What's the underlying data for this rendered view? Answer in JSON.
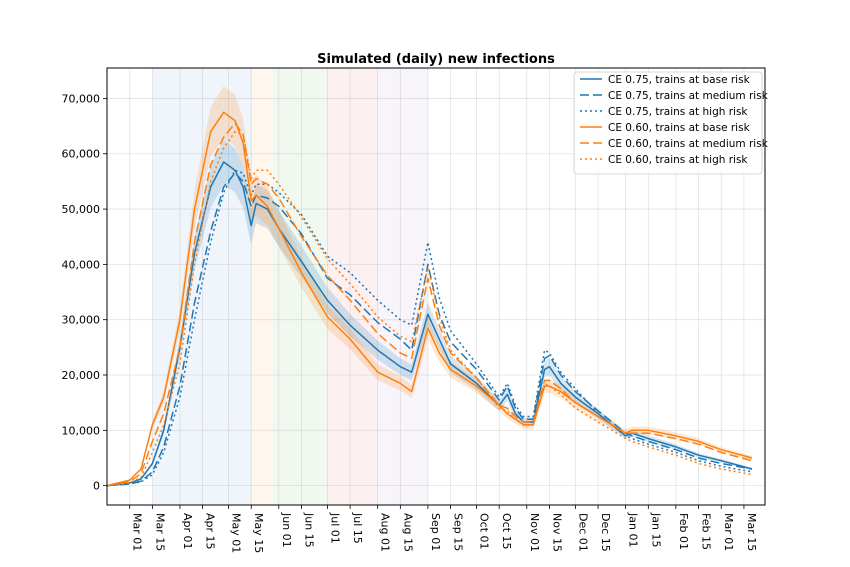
{
  "chart_data": {
    "type": "line",
    "title": "Simulated (daily) new infections",
    "xlabel": "",
    "ylabel": "",
    "ylim": [
      -3500,
      75500
    ],
    "xlim": [
      "2020-02-16",
      "2021-03-28"
    ],
    "grid": true,
    "legend_position": "top-right",
    "x_tick_labels": [
      "Mar 01",
      "Mar 15",
      "Apr 01",
      "Apr 15",
      "May 01",
      "May 15",
      "Jun 01",
      "Jun 15",
      "Jul 01",
      "Jul 15",
      "Aug 01",
      "Aug 15",
      "Sep 01",
      "Sep 15",
      "Oct 01",
      "Oct 15",
      "Nov 01",
      "Nov 15",
      "Dec 01",
      "Dec 15",
      "Jan 01",
      "Jan 15",
      "Feb 01",
      "Feb 15",
      "Mar 01",
      "Mar 15"
    ],
    "x_tick_dates": [
      "2020-03-01",
      "2020-03-15",
      "2020-04-01",
      "2020-04-15",
      "2020-05-01",
      "2020-05-15",
      "2020-06-01",
      "2020-06-15",
      "2020-07-01",
      "2020-07-15",
      "2020-08-01",
      "2020-08-15",
      "2020-09-01",
      "2020-09-15",
      "2020-10-01",
      "2020-10-15",
      "2020-11-01",
      "2020-11-15",
      "2020-12-01",
      "2020-12-15",
      "2021-01-01",
      "2021-01-15",
      "2021-02-01",
      "2021-02-15",
      "2021-03-01",
      "2021-03-15"
    ],
    "y_ticks": [
      0,
      10000,
      20000,
      30000,
      40000,
      50000,
      60000,
      70000
    ],
    "y_tick_labels": [
      "0",
      "10,000",
      "20,000",
      "30,000",
      "40,000",
      "50,000",
      "60,000",
      "70,000"
    ],
    "shaded_periods": [
      {
        "start": "2020-03-15",
        "end": "2020-05-15",
        "color": "#1f77b4"
      },
      {
        "start": "2020-05-15",
        "end": "2020-05-28",
        "color": "#ff7f0e"
      },
      {
        "start": "2020-05-28",
        "end": "2020-07-01",
        "color": "#2ca02c"
      },
      {
        "start": "2020-07-01",
        "end": "2020-08-01",
        "color": "#d62728"
      },
      {
        "start": "2020-08-01",
        "end": "2020-09-01",
        "color": "#9467bd"
      }
    ],
    "colors": {
      "blue": "#1f77b4",
      "orange": "#ff7f0e"
    },
    "series": [
      {
        "name": "CE 0.75, trains at base risk",
        "color": "#1f77b4",
        "dash": "solid",
        "band": true,
        "x": [
          "2020-02-16",
          "2020-03-01",
          "2020-03-08",
          "2020-03-15",
          "2020-03-22",
          "2020-04-01",
          "2020-04-10",
          "2020-04-20",
          "2020-04-28",
          "2020-05-05",
          "2020-05-10",
          "2020-05-15",
          "2020-05-18",
          "2020-05-25",
          "2020-06-01",
          "2020-06-15",
          "2020-07-01",
          "2020-07-15",
          "2020-08-01",
          "2020-08-15",
          "2020-08-22",
          "2020-09-01",
          "2020-09-08",
          "2020-09-15",
          "2020-10-01",
          "2020-10-15",
          "2020-10-20",
          "2020-10-25",
          "2020-10-30",
          "2020-11-05",
          "2020-11-12",
          "2020-11-15",
          "2020-11-22",
          "2020-12-01",
          "2020-12-15",
          "2021-01-01",
          "2021-01-05",
          "2021-01-15",
          "2021-02-01",
          "2021-02-15",
          "2021-03-01",
          "2021-03-20"
        ],
        "values": [
          0,
          500,
          1200,
          4000,
          10000,
          25000,
          42000,
          54000,
          58500,
          57000,
          54000,
          47000,
          51000,
          50000,
          46500,
          40500,
          33500,
          29000,
          24500,
          21500,
          20500,
          31000,
          26500,
          22000,
          18500,
          14500,
          16500,
          13000,
          11500,
          11500,
          21000,
          21500,
          18500,
          16000,
          13000,
          9000,
          9500,
          8500,
          7000,
          5500,
          4500,
          3000
        ]
      },
      {
        "name": "CE 0.75, trains at medium risk",
        "color": "#1f77b4",
        "dash": "9,4",
        "band": false,
        "x": [
          "2020-02-16",
          "2020-03-01",
          "2020-03-08",
          "2020-03-15",
          "2020-03-22",
          "2020-04-01",
          "2020-04-10",
          "2020-04-20",
          "2020-04-28",
          "2020-05-05",
          "2020-05-10",
          "2020-05-15",
          "2020-05-18",
          "2020-05-25",
          "2020-06-01",
          "2020-06-15",
          "2020-07-01",
          "2020-07-15",
          "2020-08-01",
          "2020-08-15",
          "2020-08-22",
          "2020-09-01",
          "2020-09-08",
          "2020-09-15",
          "2020-10-01",
          "2020-10-15",
          "2020-10-20",
          "2020-10-25",
          "2020-10-30",
          "2020-11-05",
          "2020-11-12",
          "2020-11-15",
          "2020-11-22",
          "2020-12-01",
          "2020-12-15",
          "2021-01-01",
          "2021-01-05",
          "2021-01-15",
          "2021-02-01",
          "2021-02-15",
          "2021-03-01",
          "2021-03-20"
        ],
        "values": [
          0,
          300,
          800,
          2500,
          7000,
          18000,
          33000,
          46000,
          54000,
          56500,
          55000,
          50500,
          52500,
          52000,
          50500,
          45500,
          37500,
          34500,
          29500,
          26500,
          24500,
          40000,
          31000,
          26000,
          21000,
          15500,
          18000,
          14000,
          12000,
          12000,
          23000,
          23500,
          20000,
          17000,
          13500,
          9500,
          9000,
          8000,
          6500,
          5000,
          4000,
          3000
        ]
      },
      {
        "name": "CE 0.75, trains at high risk",
        "color": "#1f77b4",
        "dash": "2,3",
        "band": false,
        "x": [
          "2020-02-16",
          "2020-03-01",
          "2020-03-08",
          "2020-03-15",
          "2020-03-22",
          "2020-04-01",
          "2020-04-10",
          "2020-04-20",
          "2020-04-28",
          "2020-05-05",
          "2020-05-10",
          "2020-05-15",
          "2020-05-18",
          "2020-05-25",
          "2020-06-01",
          "2020-06-15",
          "2020-07-01",
          "2020-07-15",
          "2020-08-01",
          "2020-08-15",
          "2020-08-22",
          "2020-09-01",
          "2020-09-08",
          "2020-09-15",
          "2020-10-01",
          "2020-10-15",
          "2020-10-20",
          "2020-10-25",
          "2020-10-30",
          "2020-11-05",
          "2020-11-12",
          "2020-11-15",
          "2020-11-22",
          "2020-12-01",
          "2020-12-15",
          "2021-01-01",
          "2021-01-05",
          "2021-01-15",
          "2021-02-01",
          "2021-02-15",
          "2021-03-01",
          "2021-03-20"
        ],
        "values": [
          0,
          300,
          700,
          2000,
          6000,
          16000,
          30000,
          44000,
          53000,
          57000,
          56500,
          52500,
          54500,
          54500,
          53000,
          49000,
          41500,
          38500,
          33500,
          30000,
          29000,
          44000,
          34000,
          28000,
          22000,
          16000,
          18500,
          14500,
          12500,
          12500,
          24500,
          24000,
          20500,
          17500,
          13000,
          9000,
          8500,
          7500,
          6000,
          4500,
          3500,
          2500
        ]
      },
      {
        "name": "CE 0.60, trains at base risk",
        "color": "#ff7f0e",
        "dash": "solid",
        "band": true,
        "x": [
          "2020-02-16",
          "2020-03-01",
          "2020-03-08",
          "2020-03-15",
          "2020-03-22",
          "2020-04-01",
          "2020-04-10",
          "2020-04-20",
          "2020-04-28",
          "2020-05-05",
          "2020-05-10",
          "2020-05-15",
          "2020-05-18",
          "2020-05-25",
          "2020-06-01",
          "2020-06-15",
          "2020-07-01",
          "2020-07-15",
          "2020-08-01",
          "2020-08-15",
          "2020-08-22",
          "2020-09-01",
          "2020-09-08",
          "2020-09-15",
          "2020-10-01",
          "2020-10-15",
          "2020-10-20",
          "2020-10-25",
          "2020-10-30",
          "2020-11-05",
          "2020-11-12",
          "2020-11-15",
          "2020-11-22",
          "2020-12-01",
          "2020-12-15",
          "2021-01-01",
          "2021-01-05",
          "2021-01-15",
          "2021-02-01",
          "2021-02-15",
          "2021-03-01",
          "2021-03-20"
        ],
        "values": [
          0,
          1000,
          3000,
          11000,
          16000,
          30000,
          50000,
          64000,
          67500,
          66000,
          62000,
          51500,
          52500,
          50500,
          46500,
          38500,
          30500,
          26500,
          20500,
          18500,
          17000,
          28500,
          24000,
          21000,
          18000,
          14500,
          13000,
          12000,
          11000,
          11000,
          18000,
          18000,
          17000,
          15000,
          12500,
          9500,
          10000,
          10000,
          9000,
          8000,
          6500,
          5000
        ]
      },
      {
        "name": "CE 0.60, trains at medium risk",
        "color": "#ff7f0e",
        "dash": "9,4",
        "band": false,
        "x": [
          "2020-02-16",
          "2020-03-01",
          "2020-03-08",
          "2020-03-15",
          "2020-03-22",
          "2020-04-01",
          "2020-04-10",
          "2020-04-20",
          "2020-04-28",
          "2020-05-05",
          "2020-05-10",
          "2020-05-15",
          "2020-05-18",
          "2020-05-25",
          "2020-06-01",
          "2020-06-15",
          "2020-07-01",
          "2020-07-15",
          "2020-08-01",
          "2020-08-15",
          "2020-08-22",
          "2020-09-01",
          "2020-09-08",
          "2020-09-15",
          "2020-10-01",
          "2020-10-15",
          "2020-10-20",
          "2020-10-25",
          "2020-10-30",
          "2020-11-05",
          "2020-11-12",
          "2020-11-15",
          "2020-11-22",
          "2020-12-01",
          "2020-12-15",
          "2021-01-01",
          "2021-01-05",
          "2021-01-15",
          "2021-02-01",
          "2021-02-15",
          "2021-03-01",
          "2021-03-20"
        ],
        "values": [
          0,
          700,
          2200,
          8000,
          13000,
          25000,
          44000,
          58000,
          63000,
          65500,
          63500,
          54500,
          55500,
          54500,
          52000,
          45000,
          38000,
          33500,
          27500,
          24000,
          23000,
          37500,
          29000,
          24000,
          19500,
          14500,
          14000,
          12500,
          11500,
          11500,
          19000,
          19000,
          17500,
          15000,
          12500,
          9500,
          9500,
          9500,
          8500,
          7500,
          6000,
          4500
        ]
      },
      {
        "name": "CE 0.60, trains at high risk",
        "color": "#ff7f0e",
        "dash": "2,3",
        "band": false,
        "x": [
          "2020-02-16",
          "2020-03-01",
          "2020-03-08",
          "2020-03-15",
          "2020-03-22",
          "2020-04-01",
          "2020-04-10",
          "2020-04-20",
          "2020-04-28",
          "2020-05-05",
          "2020-05-10",
          "2020-05-15",
          "2020-05-18",
          "2020-05-25",
          "2020-06-01",
          "2020-06-15",
          "2020-07-01",
          "2020-07-15",
          "2020-08-01",
          "2020-08-15",
          "2020-08-22",
          "2020-09-01",
          "2020-09-08",
          "2020-09-15",
          "2020-10-01",
          "2020-10-15",
          "2020-10-20",
          "2020-10-25",
          "2020-10-30",
          "2020-11-05",
          "2020-11-12",
          "2020-11-15",
          "2020-11-22",
          "2020-12-01",
          "2020-12-15",
          "2021-01-01",
          "2021-01-05",
          "2021-01-15",
          "2021-02-01",
          "2021-02-15",
          "2021-03-01",
          "2021-03-20"
        ],
        "values": [
          0,
          500,
          1500,
          6000,
          11000,
          22000,
          40000,
          55000,
          61000,
          64000,
          63500,
          55500,
          57000,
          57000,
          54500,
          48500,
          41000,
          36500,
          30500,
          27000,
          26000,
          39500,
          30500,
          24500,
          19500,
          14000,
          13500,
          12000,
          11000,
          11000,
          18500,
          18000,
          16500,
          14000,
          11500,
          8500,
          8000,
          7000,
          5500,
          4000,
          3000,
          2000
        ]
      }
    ]
  }
}
